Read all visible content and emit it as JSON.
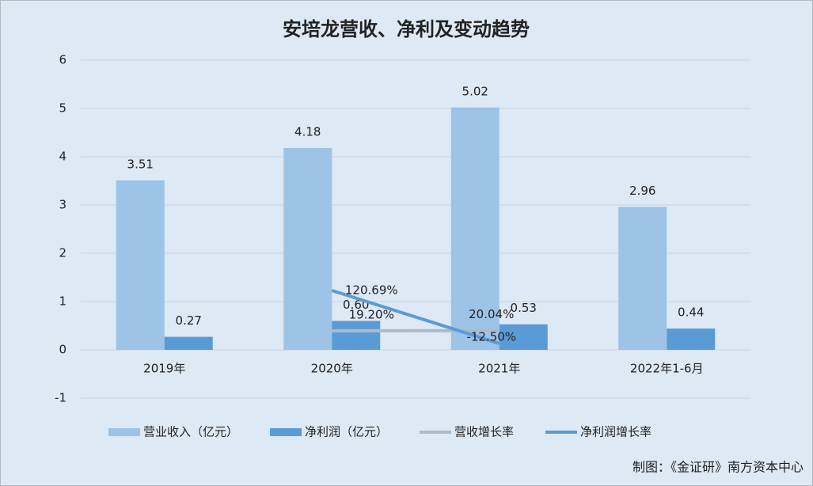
{
  "chart_data": {
    "type": "bar",
    "title": "安培龙营收、净利及变动趋势",
    "categories": [
      "2019年",
      "2020年",
      "2021年",
      "2022年1-6月"
    ],
    "ylim": [
      -1,
      6
    ],
    "yticks": [
      -1,
      0,
      1,
      2,
      3,
      4,
      5,
      6
    ],
    "y2lim": [
      -150,
      700
    ],
    "grid": true,
    "legend": "bottom",
    "series": [
      {
        "name": "营业收入（亿元）",
        "color": "#9dc3e6",
        "values": [
          3.51,
          4.18,
          5.02,
          2.96
        ]
      },
      {
        "name": "净利润（亿元）",
        "color": "#5b9bd5",
        "values": [
          0.27,
          0.6,
          0.53,
          0.44
        ],
        "value_labels": [
          "0.27",
          "0.60",
          "0.53",
          "0.44"
        ]
      },
      {
        "name": "营收增长率",
        "color": "#adb9ca",
        "type": "line",
        "axis": "y2",
        "values": [
          null,
          19.2,
          20.04,
          null
        ],
        "value_labels": [
          null,
          "19.20%",
          "20.04%",
          null
        ]
      },
      {
        "name": "净利润增长率",
        "color": "#5b9bd5",
        "type": "line",
        "axis": "y2",
        "values": [
          null,
          120.69,
          -12.5,
          null
        ],
        "value_labels": [
          null,
          "120.69%",
          "-12.50%",
          null
        ]
      }
    ],
    "source": "制图：《金证研》南方资本中心"
  }
}
